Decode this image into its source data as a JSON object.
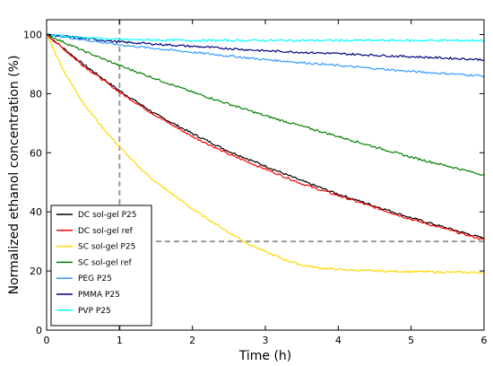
{
  "chart_data": {
    "type": "line",
    "xlabel": "Time (h)",
    "ylabel": "Normalized ethanol concentration (%)",
    "xlim": [
      0,
      6
    ],
    "ylim": [
      0,
      105
    ],
    "xticks": [
      0,
      1,
      2,
      3,
      4,
      5,
      6
    ],
    "yticks": [
      0,
      20,
      40,
      60,
      80,
      100
    ],
    "grid": false,
    "legend_position": "lower-left",
    "reference_lines": [
      {
        "type": "vertical",
        "x": 1,
        "style": "dashed",
        "color": "#999999"
      },
      {
        "type": "horizontal",
        "y": 30,
        "x_from": 1.5,
        "x_to": 6,
        "style": "dashed",
        "color": "#999999"
      }
    ],
    "series": [
      {
        "name": "DC sol-gel P25",
        "color": "#000000",
        "x": [
          0,
          0.5,
          1,
          1.5,
          2,
          2.5,
          3,
          3.5,
          4,
          4.5,
          5,
          5.5,
          6
        ],
        "y": [
          100,
          90,
          81,
          73,
          66.5,
          60.5,
          55.5,
          50.5,
          46,
          42,
          38,
          34.5,
          31
        ]
      },
      {
        "name": "DC sol-gel ref",
        "color": "#ff0000",
        "x": [
          0,
          0.5,
          1,
          1.5,
          2,
          2.5,
          3,
          3.5,
          4,
          4.5,
          5,
          5.5,
          6
        ],
        "y": [
          100,
          89.5,
          80.5,
          72.5,
          65.5,
          59.5,
          54.5,
          49.5,
          45.5,
          41.5,
          37.5,
          34,
          30.5
        ]
      },
      {
        "name": "SC sol-gel P25",
        "color": "#ffd700",
        "x": [
          0,
          0.25,
          0.5,
          0.75,
          1,
          1.25,
          1.5,
          1.75,
          2,
          2.25,
          2.5,
          2.75,
          3,
          3.25,
          3.5,
          3.75,
          4,
          4.5,
          5,
          5.5,
          6
        ],
        "y": [
          100,
          87,
          77,
          69,
          62,
          55.5,
          50,
          45.5,
          41,
          37,
          33,
          29.5,
          26.5,
          24,
          22,
          21,
          20.5,
          20,
          19.8,
          19.6,
          19.5
        ]
      },
      {
        "name": "SC sol-gel ref",
        "color": "#008000",
        "x": [
          0,
          0.5,
          1,
          1.5,
          2,
          2.5,
          3,
          3.5,
          4,
          4.5,
          5,
          5.5,
          6
        ],
        "y": [
          100,
          94.5,
          89.5,
          85,
          80.5,
          76.5,
          72.5,
          69,
          65.5,
          62,
          58.5,
          55.5,
          52.5
        ]
      },
      {
        "name": "PEG P25",
        "color": "#3399ff",
        "x": [
          0,
          1,
          2,
          3,
          4,
          5,
          6
        ],
        "y": [
          100,
          96.5,
          94,
          91.5,
          89.5,
          87.5,
          86
        ]
      },
      {
        "name": "PMMA P25",
        "color": "#000080",
        "x": [
          0,
          1,
          2,
          3,
          4,
          5,
          6
        ],
        "y": [
          100,
          97.5,
          96,
          94.5,
          93.5,
          92.5,
          91.5
        ]
      },
      {
        "name": "PVP P25",
        "color": "#00ffff",
        "x": [
          0,
          0.5,
          1,
          2,
          3,
          4,
          5,
          6
        ],
        "y": [
          100,
          99,
          98.3,
          98,
          98,
          98,
          98,
          98
        ]
      }
    ]
  }
}
